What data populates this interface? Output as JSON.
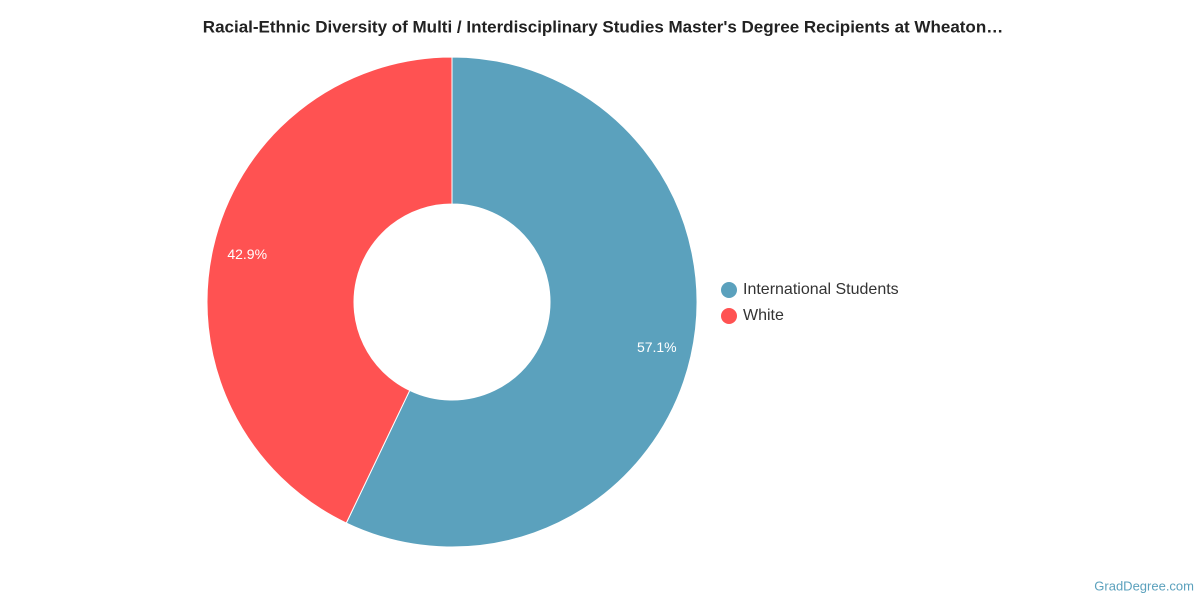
{
  "chart_data": {
    "type": "pie",
    "title": "Racial-Ethnic Diversity of Multi / Interdisciplinary Studies Master's Degree Recipients at Wheaton…",
    "categories": [
      "International Students",
      "White"
    ],
    "values": [
      57.1,
      42.9
    ],
    "value_labels": [
      "57.1%",
      "42.9%"
    ],
    "colors": [
      "#5ba1bd",
      "#ff5252"
    ],
    "legend": "right",
    "credit": "GradDegree.com"
  }
}
